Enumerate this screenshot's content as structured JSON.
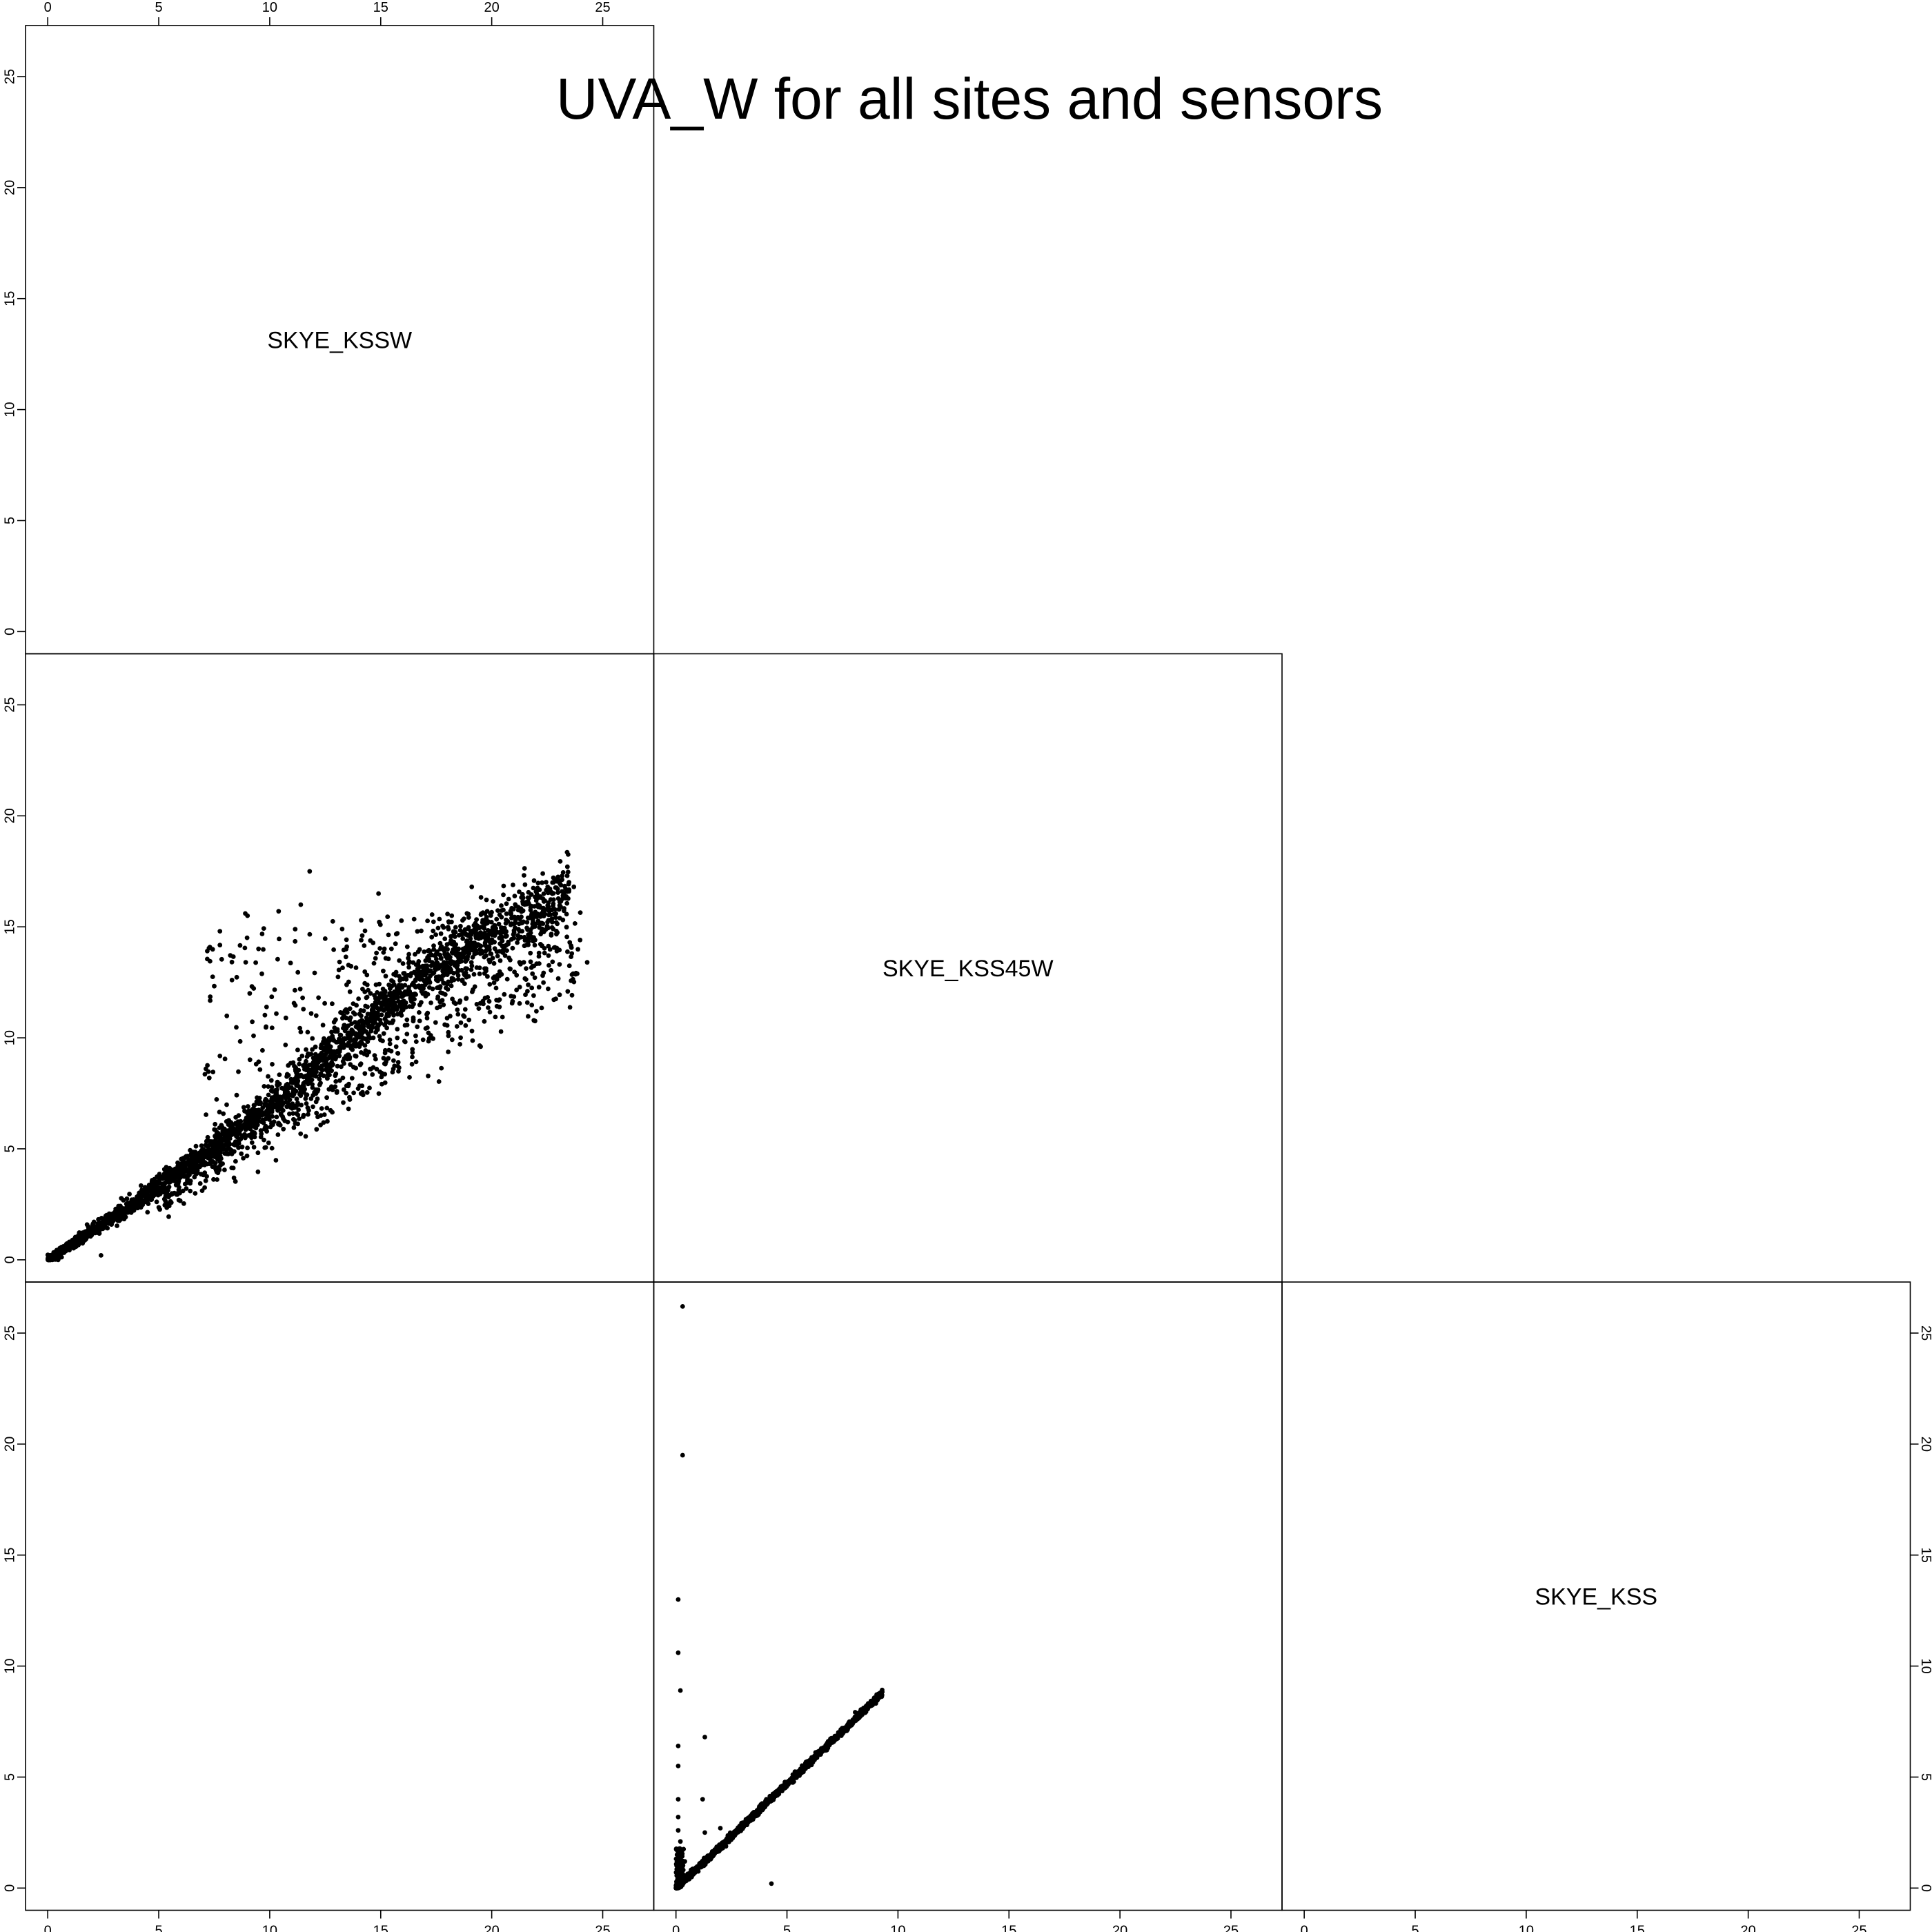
{
  "chart_data": {
    "type": "scatter",
    "title": "UVA_W for all sites and sensors",
    "variables": [
      "SKYE_KSSW",
      "SKYE_KSS45W",
      "SKYE_KSS"
    ],
    "axis_range": [
      -1,
      27.3
    ],
    "tick_values": [
      0,
      5,
      10,
      15,
      20,
      25
    ],
    "tick_labels": [
      "0",
      "5",
      "10",
      "15",
      "20",
      "25"
    ],
    "grid": false,
    "legend": "none",
    "panels": [
      {
        "row": 2,
        "col": 1,
        "x_variable": "SKYE_KSSW",
        "y_variable": "SKYE_KSS45W",
        "main_trend": [
          [
            0,
            0
          ],
          [
            2,
            1.3
          ],
          [
            4,
            2.6
          ],
          [
            6,
            4.0
          ],
          [
            8,
            5.4
          ],
          [
            10,
            6.9
          ],
          [
            12,
            8.6
          ],
          [
            14,
            10.4
          ],
          [
            16,
            12.0
          ],
          [
            18,
            13.3
          ],
          [
            20,
            14.5
          ],
          [
            22,
            15.5
          ],
          [
            23.5,
            16.5
          ]
        ],
        "lower_trend": [
          [
            6,
            3.2
          ],
          [
            10,
            5.8
          ],
          [
            14,
            8.2
          ],
          [
            18,
            10.6
          ],
          [
            22,
            12.8
          ],
          [
            24,
            13.6
          ]
        ],
        "highlighted_points": [
          [
            11.8,
            17.5
          ],
          [
            8.9,
            15.6
          ],
          [
            9.0,
            15.5
          ],
          [
            10.4,
            15.7
          ],
          [
            11.4,
            16.0
          ],
          [
            14.9,
            16.5
          ],
          [
            19.1,
            16.8
          ],
          [
            21.5,
            16.9
          ],
          [
            22.3,
            17.4
          ],
          [
            23.4,
            17.3
          ],
          [
            23.7,
            16.8
          ],
          [
            24.3,
            13.4
          ],
          [
            2.4,
            0.2
          ],
          [
            8.3,
            12.6
          ],
          [
            9.1,
            12.0
          ]
        ]
      },
      {
        "row": 3,
        "col": 2,
        "x_variable": "SKYE_KSS45W",
        "y_variable": "SKYE_KSS",
        "main_trend": [
          [
            0,
            0
          ],
          [
            2,
            1.85
          ],
          [
            4,
            3.75
          ],
          [
            6,
            5.65
          ],
          [
            8,
            7.55
          ],
          [
            9.3,
            8.8
          ]
        ],
        "highlighted_points": [
          [
            0.3,
            26.2
          ],
          [
            0.3,
            19.5
          ],
          [
            0.1,
            13.0
          ],
          [
            0.1,
            10.6
          ],
          [
            0.2,
            8.9
          ],
          [
            0.1,
            6.4
          ],
          [
            0.1,
            5.5
          ],
          [
            1.3,
            6.8
          ],
          [
            1.2,
            4.0
          ],
          [
            0.1,
            4.0
          ],
          [
            0.1,
            3.2
          ],
          [
            0.1,
            2.6
          ],
          [
            0.2,
            2.1
          ],
          [
            0.1,
            1.6
          ],
          [
            1.3,
            2.5
          ],
          [
            2.0,
            2.7
          ],
          [
            4.3,
            0.2
          ],
          [
            0.4,
            1.2
          ],
          [
            0.6,
            0.6
          ]
        ]
      }
    ]
  }
}
